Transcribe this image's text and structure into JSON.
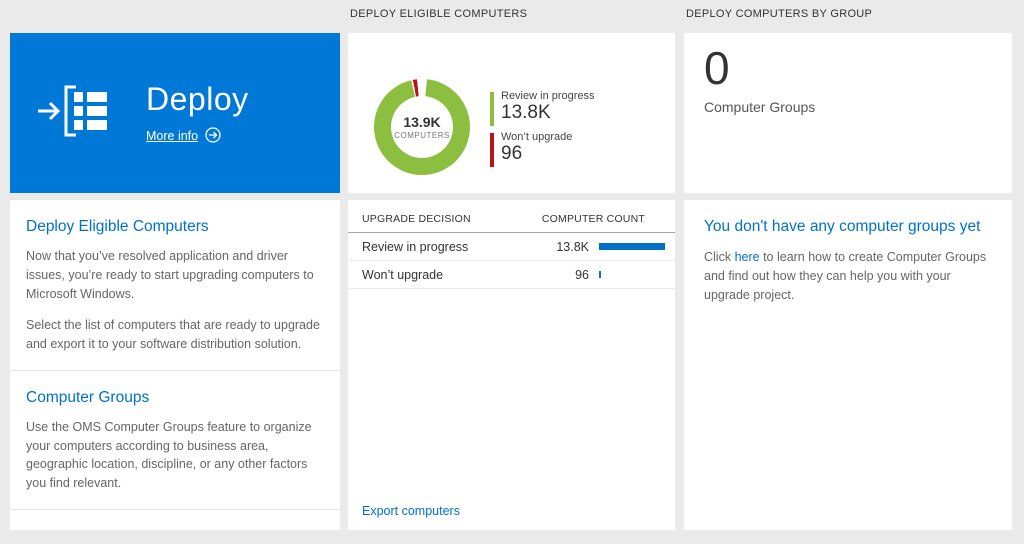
{
  "colors": {
    "tile_blue": "#0078d7",
    "link_blue": "#0072c6",
    "chart_green": "#8cbe3f",
    "chart_red": "#ba141a",
    "bar_blue": "#0072c6",
    "background": "#eaeaea"
  },
  "left": {
    "tile": {
      "title": "Deploy",
      "more_info": "More info"
    },
    "sections": [
      {
        "heading": "Deploy Eligible Computers",
        "paragraphs": [
          "Now that you’ve resolved application and driver issues, you’re ready to start upgrading computers to Microsoft Windows.",
          "Select the list of computers that are ready to upgrade and export it to your software distribution solution."
        ]
      },
      {
        "heading": "Computer Groups",
        "paragraphs": [
          "Use the OMS Computer Groups feature to organize your computers according to business area, geographic location, discipline, or any other factors you find relevant."
        ]
      }
    ]
  },
  "middle": {
    "header": "DEPLOY ELIGIBLE COMPUTERS",
    "donut": {
      "center_value": "13.9K",
      "center_label": "COMPUTERS"
    },
    "legend": [
      {
        "label": "Review in progress",
        "value": "13.8K",
        "color": "#8cbe3f"
      },
      {
        "label": "Won’t upgrade",
        "value": "96",
        "color": "#ba141a"
      }
    ],
    "table": {
      "columns": [
        "UPGRADE DECISION",
        "COMPUTER COUNT"
      ],
      "rows": [
        {
          "label": "Review in progress",
          "value": "13.8K",
          "bar_pct": 100
        },
        {
          "label": "Won’t upgrade",
          "value": "96",
          "bar_pct": 3
        }
      ]
    },
    "footer_link": "Export computers"
  },
  "right": {
    "header": "DEPLOY COMPUTERS BY GROUP",
    "stat": {
      "value": "0",
      "label": "Computer Groups"
    },
    "empty": {
      "heading": "You don't have any computer groups yet",
      "text_before": "Click ",
      "link": "here",
      "text_after": " to learn how to create Computer Groups and find out how they can help you with your upgrade project."
    }
  },
  "chart_data": {
    "type": "pie",
    "title": "DEPLOY ELIGIBLE COMPUTERS",
    "center_value": "13.9K",
    "center_label": "COMPUTERS",
    "slices": [
      {
        "label": "Review in progress",
        "value": 13800,
        "color": "#8cbe3f"
      },
      {
        "label": "Won't upgrade",
        "value": 96,
        "color": "#ba141a"
      }
    ],
    "legend_position": "right"
  }
}
